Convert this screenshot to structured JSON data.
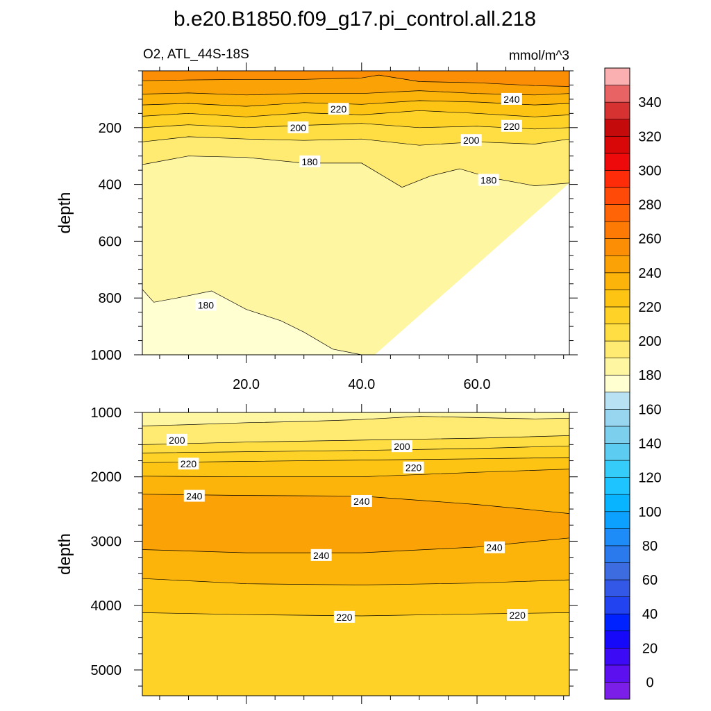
{
  "title": "b.e20.B1850.f09_g17.pi_control.all.218",
  "subtitle_left": "O2, ATL_44S-18S",
  "subtitle_right": "mmol/m^3",
  "chart_data": [
    {
      "type": "contour",
      "name": "upper-ocean panel",
      "ylabel": "depth",
      "xlim": [
        2,
        76
      ],
      "ylim": [
        0,
        1000
      ],
      "y_inverted": true,
      "x_ticks": [
        20,
        40,
        60
      ],
      "x_tick_labels": [
        "20.0",
        "40.0",
        "60.0"
      ],
      "y_ticks": [
        200,
        400,
        600,
        800,
        1000
      ],
      "y_tick_labels": [
        "200",
        "400",
        "600",
        "800",
        "1000"
      ],
      "contour_interval": 10,
      "contours": [
        {
          "level": 250,
          "x": [
            2,
            10,
            20,
            30,
            40,
            43,
            50,
            60,
            70,
            76
          ],
          "y": [
            35,
            32,
            30,
            30,
            25,
            15,
            38,
            42,
            52,
            55
          ]
        },
        {
          "level": 240,
          "x": [
            2,
            10,
            20,
            30,
            40,
            50,
            60,
            70,
            76
          ],
          "y": [
            82,
            78,
            85,
            80,
            80,
            70,
            80,
            85,
            80
          ]
        },
        {
          "level": 230,
          "x": [
            2,
            10,
            20,
            30,
            40,
            50,
            60,
            70,
            76
          ],
          "y": [
            120,
            115,
            125,
            112,
            118,
            105,
            110,
            120,
            115
          ]
        },
        {
          "level": 220,
          "x": [
            2,
            10,
            20,
            30,
            40,
            50,
            60,
            70,
            76
          ],
          "y": [
            160,
            150,
            162,
            148,
            155,
            140,
            150,
            162,
            155
          ]
        },
        {
          "level": 210,
          "x": [
            2,
            10,
            20,
            30,
            40,
            50,
            60,
            70,
            76
          ],
          "y": [
            200,
            190,
            200,
            192,
            185,
            200,
            195,
            205,
            200
          ]
        },
        {
          "level": 200,
          "x": [
            2,
            10,
            20,
            30,
            40,
            50,
            60,
            70,
            76
          ],
          "y": [
            250,
            232,
            240,
            245,
            240,
            262,
            250,
            258,
            240
          ]
        },
        {
          "level": 190,
          "x": [
            2,
            10,
            20,
            30,
            40,
            47,
            52,
            57,
            62,
            70,
            76
          ],
          "y": [
            330,
            300,
            305,
            325,
            325,
            410,
            370,
            345,
            375,
            405,
            395
          ]
        },
        {
          "level": 180,
          "x": [
            2,
            4,
            8,
            14,
            20,
            26,
            30,
            35,
            40,
            42
          ],
          "y": [
            770,
            815,
            800,
            775,
            840,
            880,
            920,
            980,
            1000,
            1005
          ]
        }
      ],
      "labels": [
        {
          "level": 240,
          "x": 66,
          "y": 100
        },
        {
          "level": 220,
          "x": 36,
          "y": 135
        },
        {
          "level": 220,
          "x": 66,
          "y": 195
        },
        {
          "level": 200,
          "x": 29,
          "y": 200
        },
        {
          "level": 200,
          "x": 59,
          "y": 245
        },
        {
          "level": 180,
          "x": 31,
          "y": 320
        },
        {
          "level": 180,
          "x": 62,
          "y": 385
        },
        {
          "level": 180,
          "x": 13,
          "y": 825
        }
      ]
    },
    {
      "type": "contour",
      "name": "deep-ocean panel",
      "ylabel": "depth",
      "xlim": [
        2,
        76
      ],
      "ylim": [
        1000,
        5400
      ],
      "y_inverted": true,
      "y_ticks": [
        1000,
        2000,
        3000,
        4000,
        5000
      ],
      "y_tick_labels": [
        "1000",
        "2000",
        "3000",
        "4000",
        "5000"
      ],
      "contour_interval": 10,
      "contours": [
        {
          "level": 190,
          "x": [
            2,
            10,
            20,
            30,
            40,
            50,
            60,
            70,
            76
          ],
          "y": [
            1210,
            1190,
            1160,
            1140,
            1110,
            1060,
            1080,
            1100,
            1090
          ]
        },
        {
          "level": 200,
          "x": [
            2,
            20,
            40,
            60,
            76
          ],
          "y": [
            1500,
            1460,
            1430,
            1400,
            1360
          ]
        },
        {
          "level": 210,
          "x": [
            2,
            20,
            40,
            60,
            76
          ],
          "y": [
            1630,
            1610,
            1590,
            1560,
            1520
          ]
        },
        {
          "level": 220,
          "x": [
            2,
            20,
            40,
            60,
            76
          ],
          "y": [
            1780,
            1760,
            1740,
            1720,
            1700
          ]
        },
        {
          "level": 230,
          "x": [
            2,
            20,
            40,
            60,
            76
          ],
          "y": [
            1990,
            2000,
            2000,
            1930,
            1880
          ]
        },
        {
          "level": 240,
          "x": [
            2,
            20,
            40,
            60,
            76
          ],
          "y": [
            2270,
            2290,
            2300,
            2430,
            2570
          ]
        },
        {
          "level": 240,
          "x": [
            2,
            20,
            40,
            60,
            76
          ],
          "y": [
            3130,
            3180,
            3180,
            3090,
            2950
          ]
        },
        {
          "level": 230,
          "x": [
            2,
            20,
            40,
            60,
            76
          ],
          "y": [
            3580,
            3660,
            3680,
            3650,
            3600
          ]
        },
        {
          "level": 220,
          "x": [
            2,
            20,
            40,
            60,
            76
          ],
          "y": [
            4110,
            4140,
            4160,
            4130,
            4110
          ]
        }
      ],
      "labels": [
        {
          "level": 200,
          "x": 8,
          "y": 1430
        },
        {
          "level": 200,
          "x": 47,
          "y": 1530
        },
        {
          "level": 220,
          "x": 10,
          "y": 1800
        },
        {
          "level": 220,
          "x": 49,
          "y": 1860
        },
        {
          "level": 240,
          "x": 11,
          "y": 2300
        },
        {
          "level": 240,
          "x": 40,
          "y": 2380
        },
        {
          "level": 240,
          "x": 33,
          "y": 3220
        },
        {
          "level": 240,
          "x": 63,
          "y": 3100
        },
        {
          "level": 220,
          "x": 37,
          "y": 4180
        },
        {
          "level": 220,
          "x": 67,
          "y": 4150
        }
      ]
    }
  ],
  "colorbar": {
    "levels": [
      -10,
      0,
      10,
      20,
      30,
      40,
      50,
      60,
      70,
      80,
      90,
      100,
      110,
      120,
      130,
      140,
      150,
      160,
      170,
      180,
      190,
      200,
      210,
      220,
      230,
      240,
      250,
      260,
      270,
      280,
      290,
      300,
      310,
      320,
      330,
      340,
      350,
      360
    ],
    "colors": [
      "#7b1fe8",
      "#5c10f0",
      "#3c0af4",
      "#1608f8",
      "#0022ff",
      "#2244f0",
      "#3358e8",
      "#3c6ce0",
      "#2a7aee",
      "#1e8cf8",
      "#0ca0ff",
      "#08b4ff",
      "#1ec4ff",
      "#36ccfa",
      "#5ccdf0",
      "#7cd0ee",
      "#98d6f0",
      "#b8e2f4",
      "#ffffd2",
      "#fff6a2",
      "#ffea72",
      "#ffde44",
      "#ffd228",
      "#fec414",
      "#fcb40a",
      "#faa206",
      "#fb8e04",
      "#fd7a04",
      "#ff6406",
      "#ff4a08",
      "#ff2c0a",
      "#ee0a0a",
      "#d80808",
      "#c40a0a",
      "#d63232",
      "#e86464",
      "#fab0b0"
    ],
    "tick_labels": [
      "0",
      "20",
      "40",
      "60",
      "80",
      "100",
      "120",
      "140",
      "160",
      "180",
      "200",
      "220",
      "240",
      "260",
      "280",
      "300",
      "320",
      "340"
    ]
  }
}
